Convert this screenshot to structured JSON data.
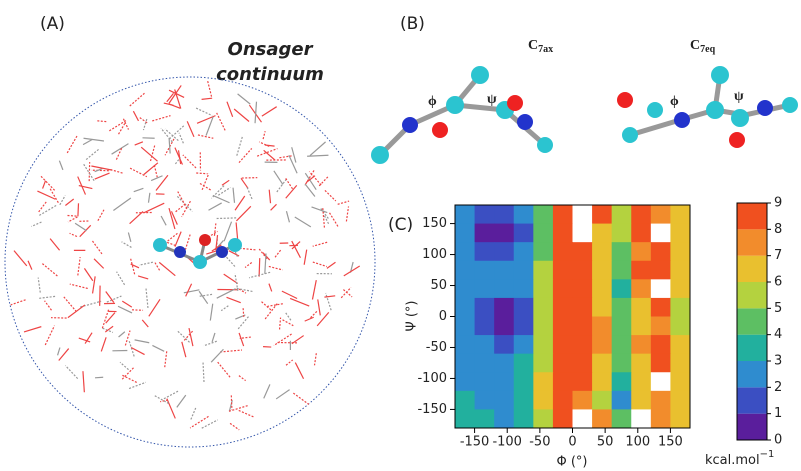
{
  "panels": {
    "a": {
      "label": "(A)",
      "note_line1": "Onsager",
      "note_line2": "continuum"
    },
    "b": {
      "label": "(B)",
      "left_title": {
        "main": "C",
        "sub": "7ax"
      },
      "right_title": {
        "main": "C",
        "sub": "7eq"
      },
      "left_phi": "ϕ",
      "left_psi": "ψ",
      "right_phi": "ϕ",
      "right_psi": "ψ"
    },
    "c": {
      "label": "(C)"
    }
  },
  "chart_data": {
    "type": "contour",
    "xlabel": "Φ (°)",
    "ylabel": "Ψ (°)",
    "colorbar_label": "kcal.mol",
    "colorbar_label_sup": "−1",
    "xlim": [
      -180,
      180
    ],
    "ylim": [
      -180,
      180
    ],
    "xticks": [
      -150,
      -100,
      -50,
      0,
      50,
      100,
      150
    ],
    "yticks": [
      -150,
      -100,
      -50,
      0,
      50,
      100,
      150
    ],
    "x": [
      -165,
      -135,
      -105,
      -75,
      -45,
      -15,
      15,
      45,
      75,
      105,
      135,
      165
    ],
    "y": [
      165,
      135,
      105,
      75,
      45,
      15,
      -15,
      -45,
      -75,
      -105,
      -135,
      -165
    ],
    "z": [
      [
        2.5,
        1.5,
        1,
        2,
        4,
        8,
        9.5,
        8,
        5,
        8,
        7,
        6
      ],
      [
        2,
        0.5,
        0.5,
        1.5,
        4,
        8,
        9.5,
        6,
        5,
        8,
        9.5,
        6
      ],
      [
        2,
        1,
        1,
        2,
        4.5,
        8,
        8,
        6,
        4,
        7,
        8,
        6
      ],
      [
        2.5,
        2,
        2,
        2.5,
        5,
        8,
        8,
        6,
        4,
        8,
        8,
        6
      ],
      [
        2.5,
        2,
        2,
        2.5,
        5,
        8,
        8.5,
        6,
        3,
        7,
        9.5,
        6
      ],
      [
        2.5,
        1.5,
        0.5,
        1.5,
        5,
        8,
        8.5,
        6,
        4,
        6,
        8,
        5.5
      ],
      [
        2.5,
        1,
        0.5,
        1.5,
        5,
        8,
        8.5,
        7,
        4.5,
        6,
        7,
        5.5
      ],
      [
        2.5,
        2,
        1.5,
        2.5,
        5,
        8,
        8,
        7,
        4,
        7,
        8,
        6
      ],
      [
        2.5,
        2.5,
        2.5,
        3,
        5.5,
        8,
        8,
        6,
        4,
        6,
        8,
        6
      ],
      [
        2.5,
        2,
        2.5,
        3,
        6,
        8,
        8,
        6,
        3.5,
        6,
        9.5,
        6
      ],
      [
        3,
        2.5,
        2.5,
        3.5,
        6,
        8,
        7,
        5,
        2.5,
        6,
        7,
        6
      ],
      [
        3,
        3,
        2.5,
        3,
        5.5,
        8,
        9.5,
        7,
        4,
        9.5,
        7,
        6
      ]
    ],
    "clim": [
      0,
      9
    ],
    "colorbar_ticks": [
      0,
      1,
      2,
      3,
      4,
      5,
      6,
      7,
      8,
      9
    ],
    "colors": [
      "#5a1e9c",
      "#3b4fc2",
      "#2f8ccf",
      "#22b09e",
      "#5dbf63",
      "#b4d23f",
      "#e9c02f",
      "#f28c2c",
      "#f0501f"
    ],
    "over_color": "#ffffff"
  }
}
